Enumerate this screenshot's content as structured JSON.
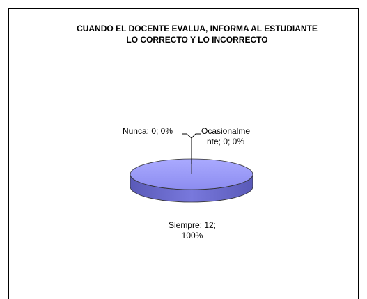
{
  "chart_data": {
    "type": "pie",
    "title": "CUANDO EL DOCENTE EVALUA,  INFORMA AL ESTUDIANTE  LO CORRECTO Y LO INCORRECTO",
    "categories": [
      "Siempre",
      "Ocasionalmente",
      "Nunca"
    ],
    "values": [
      12,
      0,
      0
    ],
    "value_labels": [
      "Siempre; 12; 100%",
      "Ocasionalmente; 0; 0%",
      "Nunca; 0; 0%"
    ],
    "color": "#9999ff"
  }
}
